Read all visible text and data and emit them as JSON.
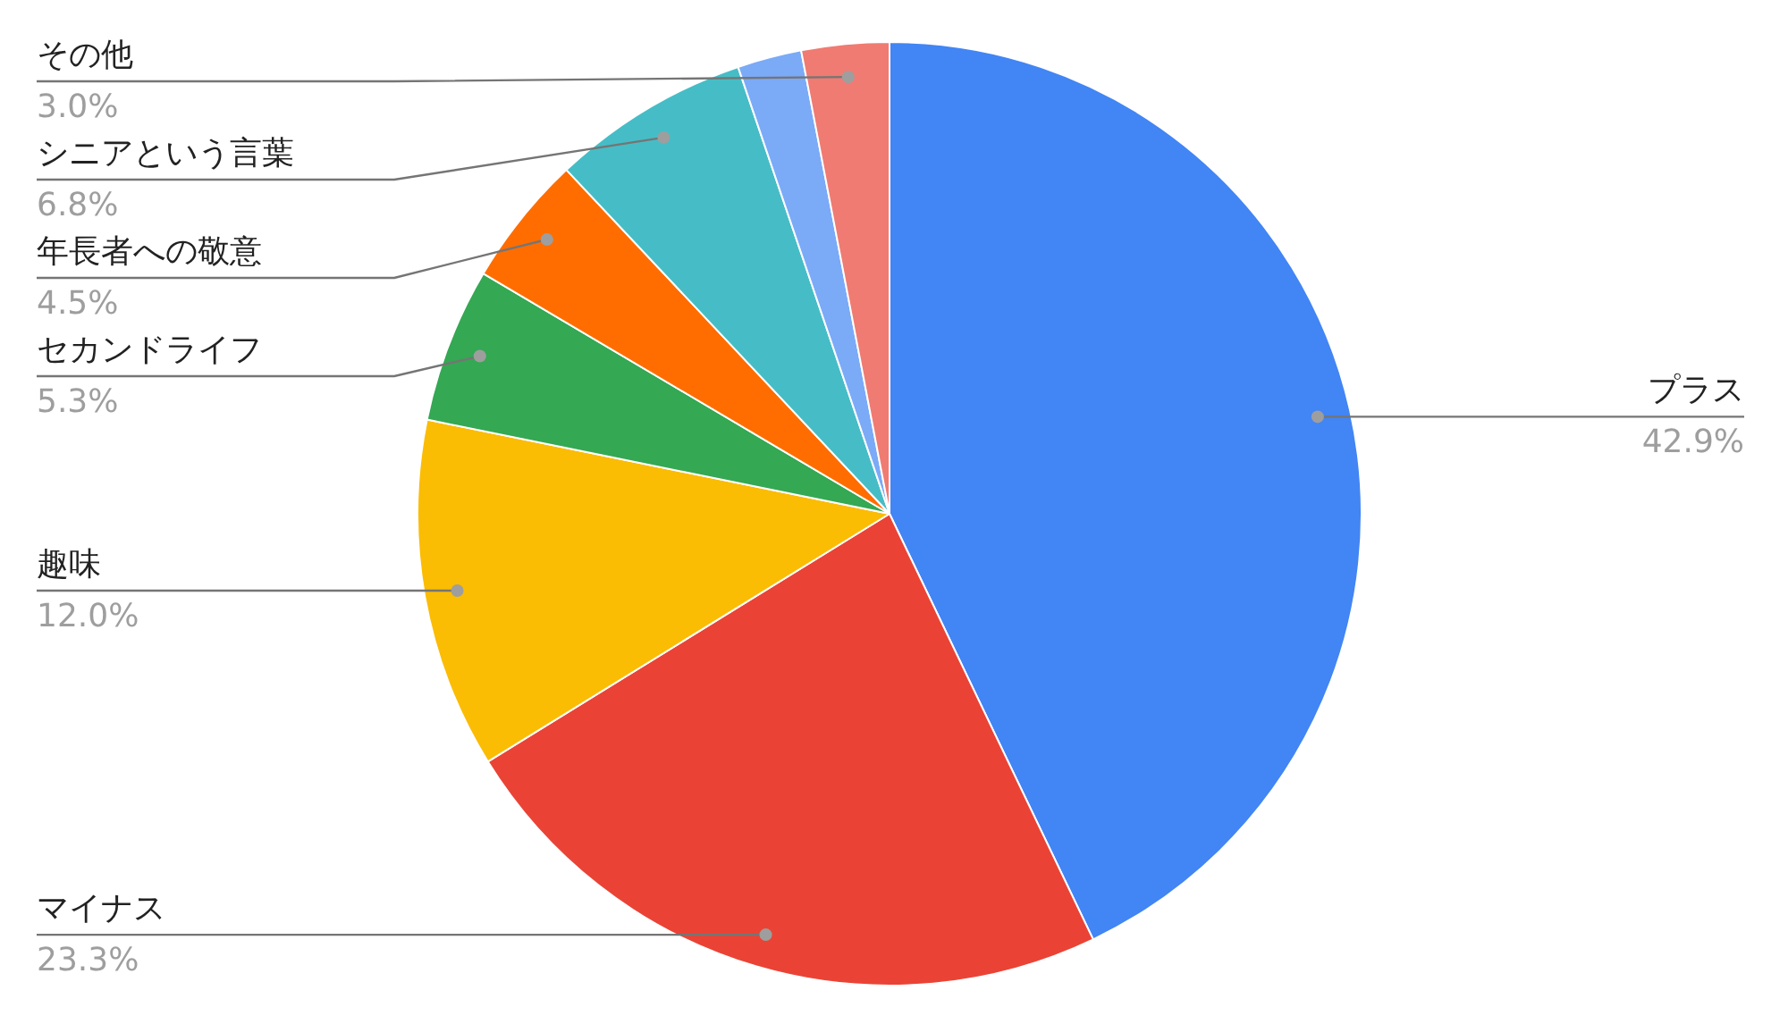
{
  "chart_data": {
    "type": "pie",
    "categories": [
      "プラス",
      "マイナス",
      "趣味",
      "セカンドライフ",
      "年長者への敬意",
      "シニアという言葉",
      null,
      "その他"
    ],
    "values": [
      42.9,
      23.3,
      12.0,
      5.3,
      4.5,
      6.8,
      2.2,
      3.0
    ],
    "value_labels": [
      "42.9%",
      "23.3%",
      "12.0%",
      "5.3%",
      "4.5%",
      "6.8%",
      null,
      "3.0%"
    ],
    "colors": [
      "#4285f4",
      "#ea4335",
      "#fbbc04",
      "#34a853",
      "#ff6d01",
      "#46bdc6",
      "#7baaf7",
      "#f07b72"
    ]
  }
}
